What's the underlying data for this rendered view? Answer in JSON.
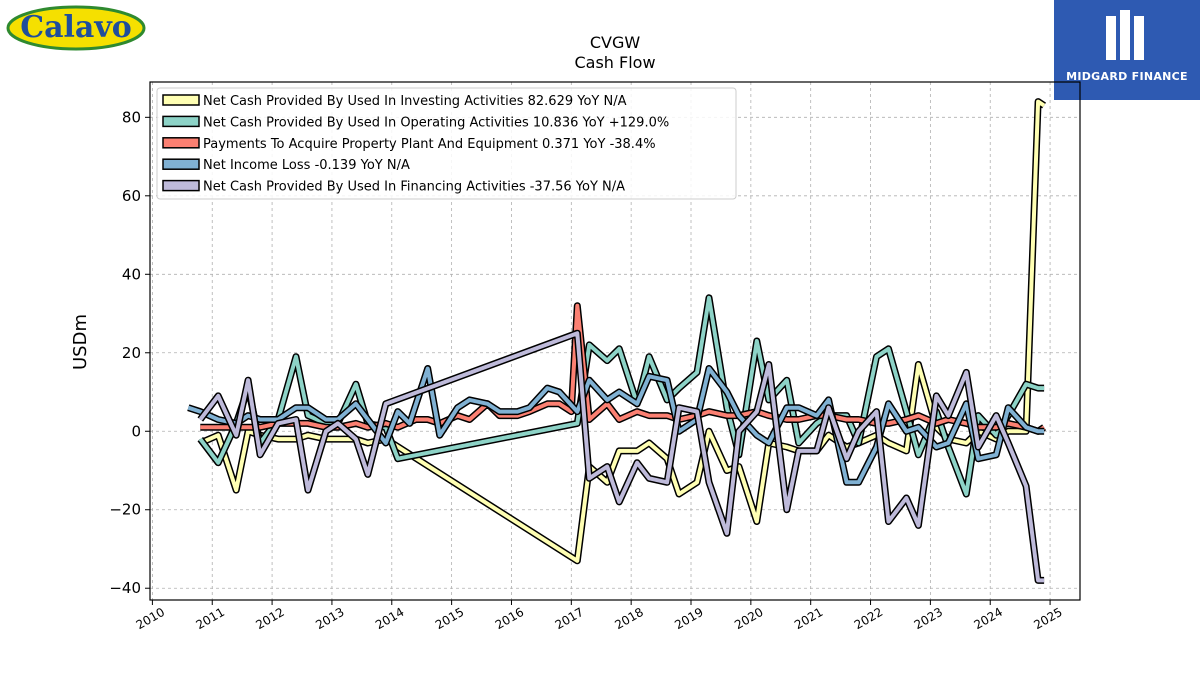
{
  "branding": {
    "left_logo": "Calavo",
    "right_logo": "MIDGARD FINANCE",
    "left_logo_colors": {
      "fill": "#f5e000",
      "border": "#2f8a2f",
      "text": "#1f4e9c"
    },
    "right_logo_color": "#2e5ab2"
  },
  "chart_data": {
    "type": "line",
    "title": "CVGW",
    "subtitle": "Cash Flow",
    "ylabel": "USDm",
    "xlabel": "",
    "ylim": [
      -43,
      89
    ],
    "xlim": [
      2009.96,
      2025.5
    ],
    "x_ticks": [
      "2010",
      "2011",
      "2012",
      "2013",
      "2014",
      "2015",
      "2016",
      "2017",
      "2018",
      "2019",
      "2020",
      "2021",
      "2022",
      "2023",
      "2024",
      "2025"
    ],
    "y_ticks": [
      "−40",
      "−20",
      "0",
      "20",
      "40",
      "60",
      "80"
    ],
    "grid": true,
    "legend_position": "top-left",
    "series": [
      {
        "name": "Net Cash Provided By Used In Investing Activities  82.629 YoY N/A",
        "color": "#ffffb3",
        "x": [
          2010.8,
          2011.1,
          2011.4,
          2011.6,
          2011.8,
          2012.1,
          2012.4,
          2012.6,
          2012.9,
          2013.1,
          2013.4,
          2013.6,
          2013.9,
          2017.1,
          2017.3,
          2017.6,
          2017.8,
          2018.1,
          2018.3,
          2018.6,
          2018.8,
          2019.1,
          2019.3,
          2019.6,
          2019.8,
          2020.1,
          2020.3,
          2020.6,
          2020.8,
          2021.1,
          2021.3,
          2021.6,
          2021.8,
          2022.1,
          2022.3,
          2022.6,
          2022.8,
          2023.1,
          2023.3,
          2023.6,
          2023.8,
          2024.1,
          2024.3,
          2024.6,
          2024.8,
          2024.9
        ],
        "y": [
          -3,
          -1,
          -15,
          0,
          -1,
          -2,
          -2,
          -1,
          -2,
          -2,
          -2,
          -3,
          -2,
          -33,
          -9,
          -13,
          -5,
          -5,
          -3,
          -7,
          -16,
          -13,
          0,
          -10,
          -9,
          -23,
          -3,
          -4,
          -5,
          -5,
          -1,
          -4,
          -3,
          -1,
          -3,
          -5,
          17,
          1,
          -2,
          -3,
          0,
          -2,
          0,
          0,
          84,
          83
        ]
      },
      {
        "name": "Net Cash Provided By Used In Operating Activities  10.836 YoY +129.0%",
        "color": "#8dd3c7",
        "x": [
          2010.8,
          2011.1,
          2011.4,
          2011.6,
          2011.8,
          2012.1,
          2012.4,
          2012.6,
          2012.9,
          2013.1,
          2013.4,
          2013.6,
          2013.9,
          2014.1,
          2017.1,
          2017.3,
          2017.6,
          2017.8,
          2018.1,
          2018.3,
          2018.6,
          2018.8,
          2019.1,
          2019.3,
          2019.6,
          2019.8,
          2020.1,
          2020.3,
          2020.6,
          2020.8,
          2021.1,
          2021.3,
          2021.6,
          2021.8,
          2022.1,
          2022.3,
          2022.6,
          2022.8,
          2023.1,
          2023.3,
          2023.6,
          2023.8,
          2024.1,
          2024.3,
          2024.6,
          2024.8,
          2024.9
        ],
        "y": [
          -2,
          -8,
          2,
          11,
          -3,
          3,
          19,
          4,
          2,
          2,
          12,
          2,
          1,
          -7,
          2,
          22,
          18,
          21,
          7,
          19,
          8,
          11,
          15,
          34,
          6,
          -6,
          23,
          8,
          13,
          -3,
          2,
          4,
          4,
          -3,
          19,
          21,
          5,
          -6,
          5,
          -4,
          -16,
          4,
          -1,
          4,
          12,
          11,
          11
        ]
      },
      {
        "name": "Payments To Acquire Property Plant And Equipment  0.371 YoY -38.4%",
        "color": "#fb8072",
        "x": [
          2010.8,
          2011.1,
          2011.4,
          2011.6,
          2011.8,
          2012.1,
          2012.4,
          2012.6,
          2012.9,
          2013.1,
          2013.4,
          2013.6,
          2013.9,
          2014.1,
          2014.4,
          2014.6,
          2014.8,
          2015.1,
          2015.3,
          2015.6,
          2015.8,
          2016.1,
          2016.3,
          2016.6,
          2016.8,
          2017.0,
          2017.1,
          2017.3,
          2017.6,
          2017.8,
          2018.1,
          2018.3,
          2018.6,
          2018.8,
          2019.1,
          2019.3,
          2019.6,
          2019.8,
          2020.1,
          2020.3,
          2020.6,
          2020.8,
          2021.1,
          2021.3,
          2021.6,
          2021.8,
          2022.1,
          2022.3,
          2022.6,
          2022.8,
          2023.1,
          2023.3,
          2023.6,
          2023.8,
          2024.1,
          2024.3,
          2024.6,
          2024.8,
          2024.9
        ],
        "y": [
          1,
          1,
          1,
          1,
          1,
          2,
          2,
          2,
          1,
          1,
          2,
          1,
          2,
          1,
          3,
          3,
          2,
          4,
          3,
          7,
          4,
          4,
          5,
          7,
          7,
          5,
          32,
          3,
          7,
          3,
          5,
          4,
          4,
          3,
          4,
          5,
          4,
          4,
          5,
          4,
          3,
          3,
          4,
          4,
          3,
          3,
          2,
          2,
          3,
          4,
          2,
          3,
          2,
          1,
          1,
          2,
          1,
          0,
          1
        ]
      },
      {
        "name": "Net Income Loss  -0.139 YoY N/A",
        "color": "#80b1d3",
        "x": [
          2010.6,
          2010.8,
          2011.1,
          2011.4,
          2011.6,
          2011.8,
          2012.1,
          2012.4,
          2012.6,
          2012.9,
          2013.1,
          2013.4,
          2013.6,
          2013.9,
          2014.1,
          2014.3,
          2014.6,
          2014.8,
          2015.1,
          2015.3,
          2015.6,
          2015.8,
          2016.1,
          2016.3,
          2016.6,
          2016.8,
          2017.1,
          2017.3,
          2017.6,
          2017.8,
          2018.1,
          2018.3,
          2018.6,
          2018.8,
          2019.1,
          2019.3,
          2019.6,
          2019.8,
          2020.1,
          2020.3,
          2020.6,
          2020.8,
          2021.1,
          2021.3,
          2021.6,
          2021.8,
          2022.1,
          2022.3,
          2022.6,
          2022.8,
          2023.1,
          2023.3,
          2023.6,
          2023.8,
          2024.1,
          2024.3,
          2024.6,
          2024.8,
          2024.9
        ],
        "y": [
          6,
          5,
          3,
          2,
          4,
          3,
          3,
          6,
          6,
          3,
          3,
          7,
          3,
          -3,
          5,
          2,
          16,
          -1,
          6,
          8,
          7,
          5,
          5,
          6,
          11,
          10,
          5,
          13,
          8,
          10,
          7,
          14,
          13,
          0,
          3,
          16,
          10,
          4,
          -1,
          -3,
          6,
          6,
          4,
          8,
          -13,
          -13,
          -4,
          7,
          0,
          1,
          -4,
          -3,
          7,
          -7,
          -6,
          6,
          1,
          0,
          0
        ]
      },
      {
        "name": "Net Cash Provided By Used In Financing Activities  -37.56 YoY N/A",
        "color": "#bebada",
        "x": [
          2010.8,
          2011.1,
          2011.4,
          2011.6,
          2011.8,
          2012.1,
          2012.4,
          2012.6,
          2012.9,
          2013.1,
          2013.4,
          2013.6,
          2013.9,
          2017.1,
          2017.3,
          2017.6,
          2017.8,
          2018.1,
          2018.3,
          2018.6,
          2018.8,
          2019.1,
          2019.3,
          2019.6,
          2019.8,
          2020.1,
          2020.3,
          2020.6,
          2020.8,
          2021.1,
          2021.3,
          2021.6,
          2021.8,
          2022.1,
          2022.3,
          2022.6,
          2022.8,
          2023.1,
          2023.3,
          2023.6,
          2023.8,
          2024.1,
          2024.3,
          2024.6,
          2024.8,
          2024.9
        ],
        "y": [
          3,
          9,
          -1,
          13,
          -6,
          2,
          3,
          -15,
          0,
          2,
          -2,
          -11,
          7,
          25,
          -12,
          -9,
          -18,
          -8,
          -12,
          -13,
          6,
          5,
          -13,
          -26,
          0,
          5,
          17,
          -20,
          -5,
          -5,
          6,
          -7,
          0,
          5,
          -23,
          -17,
          -24,
          9,
          4,
          15,
          -4,
          4,
          -3,
          -14,
          -38,
          -38
        ]
      }
    ]
  }
}
